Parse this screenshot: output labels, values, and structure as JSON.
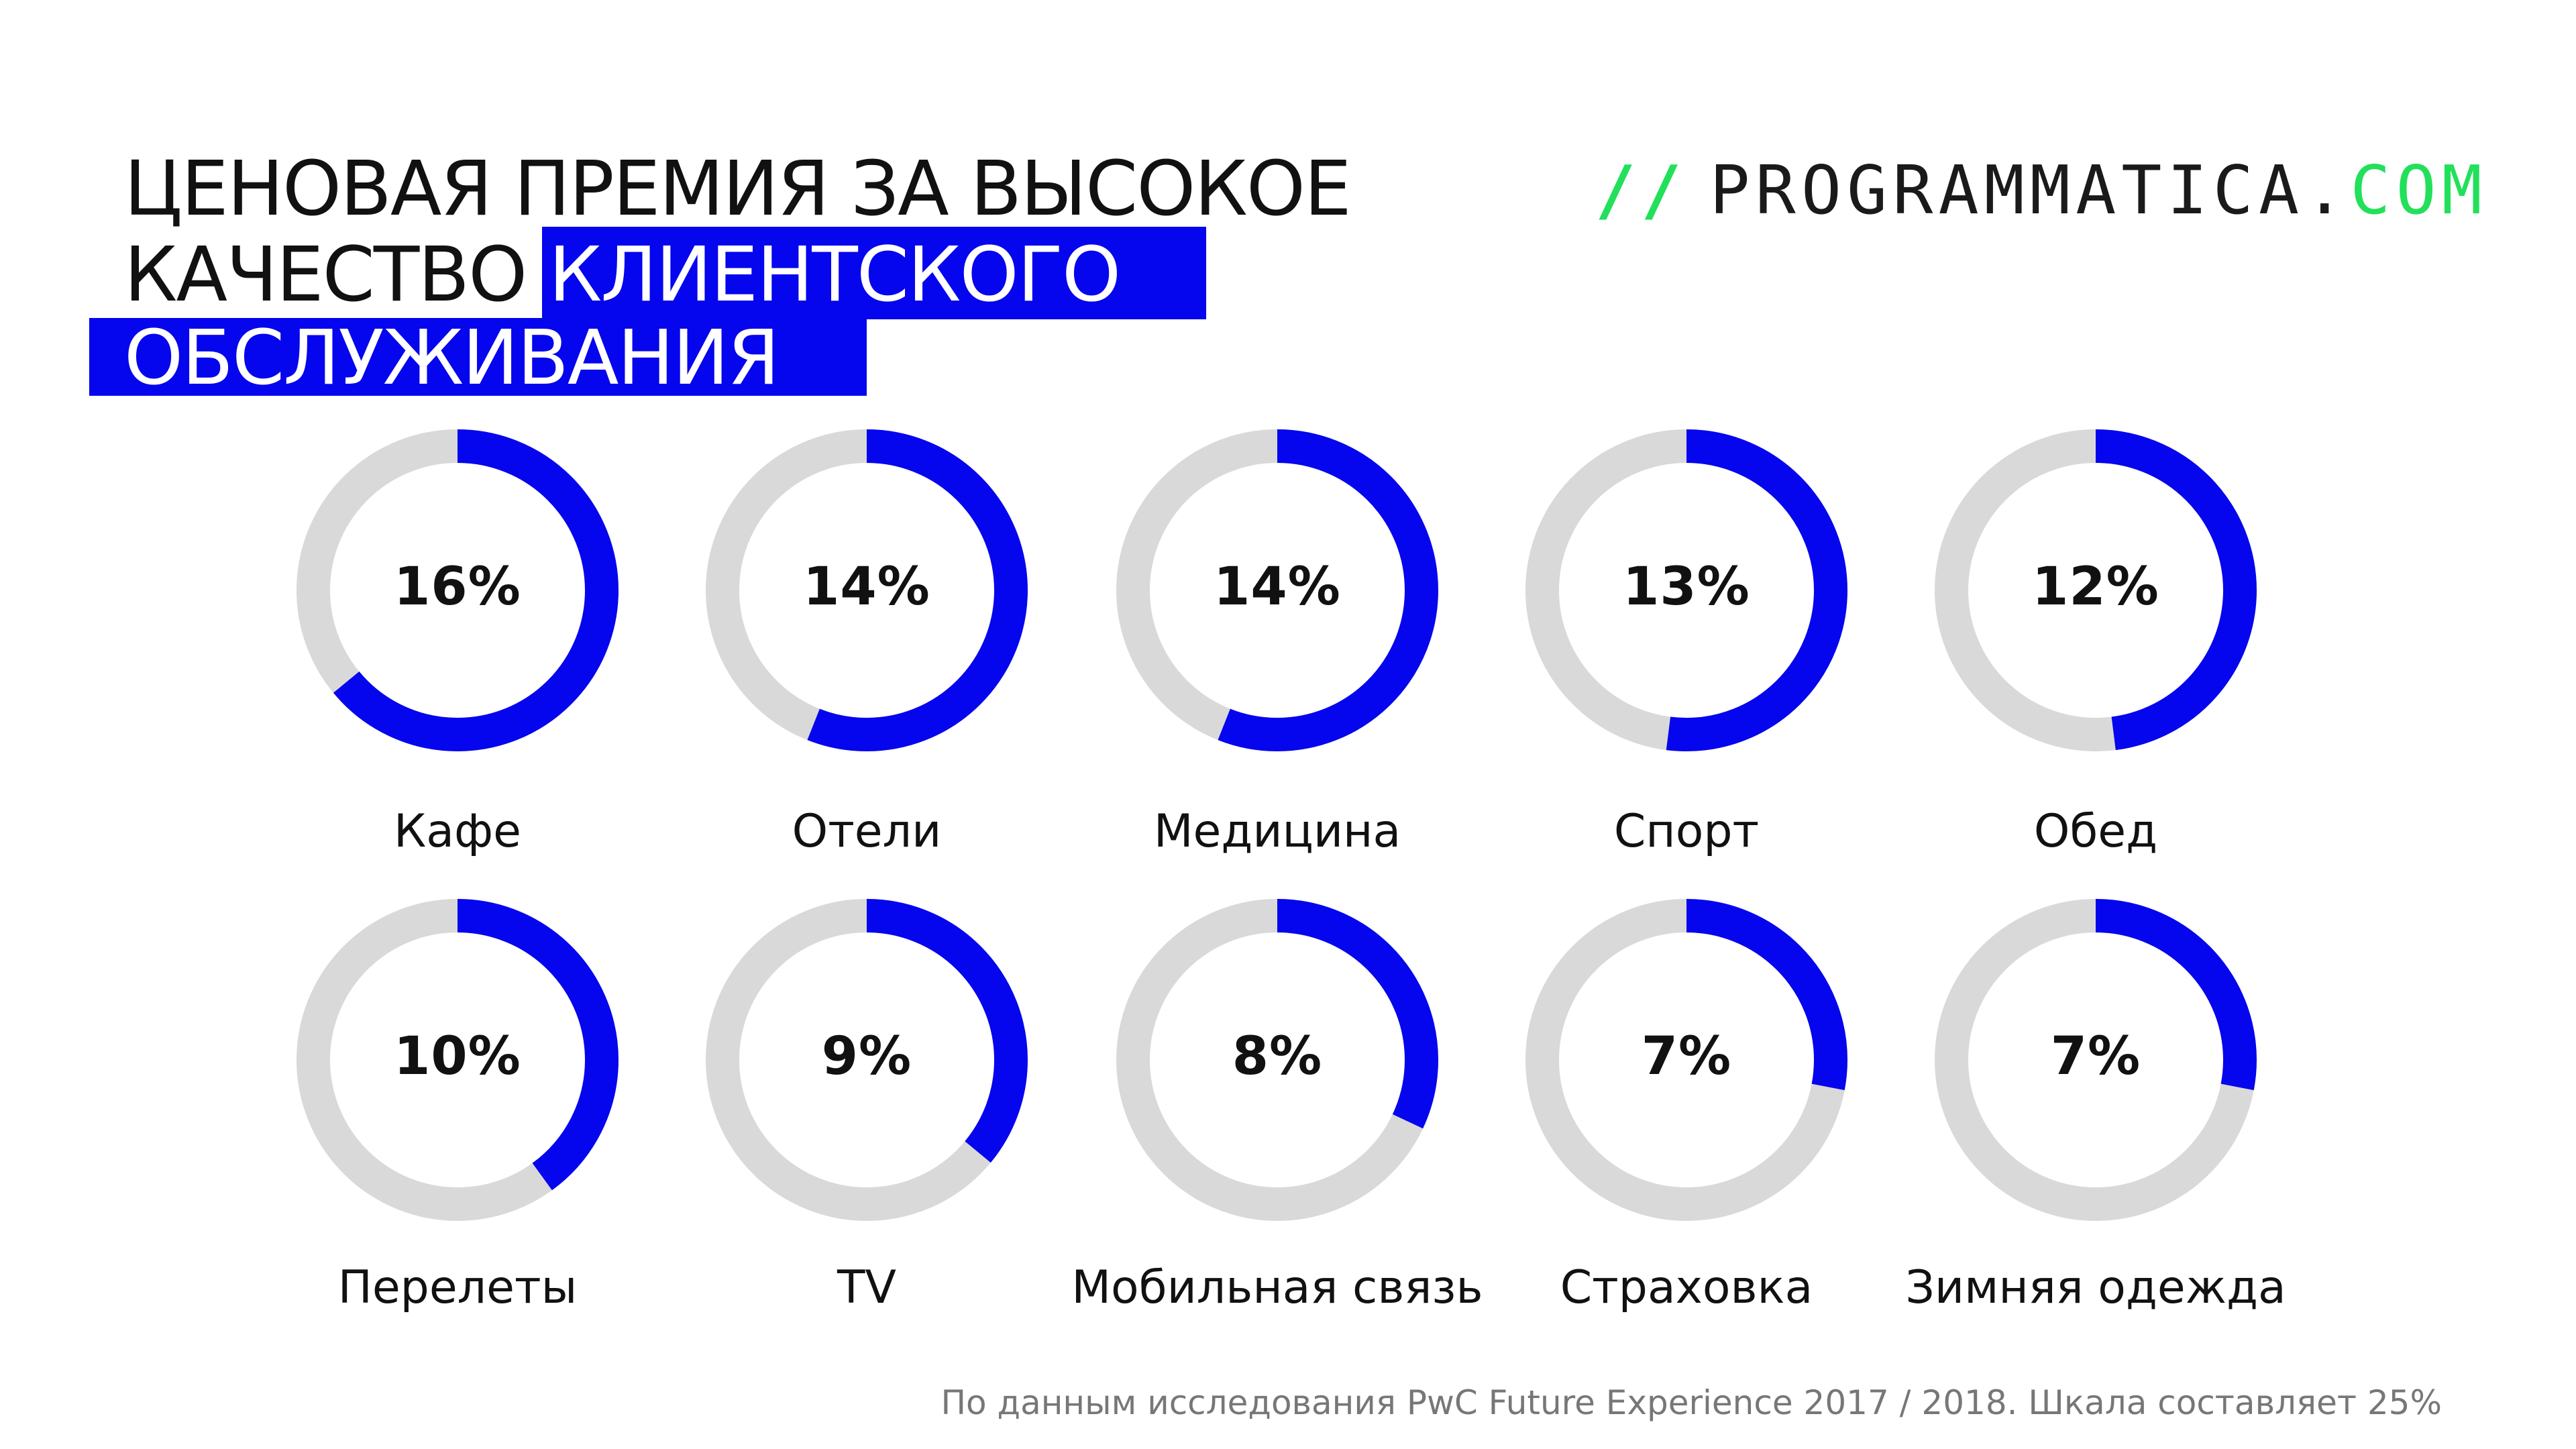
{
  "title": {
    "line1": "ЦЕНОВАЯ ПРЕМИЯ ЗА ВЫСОКОЕ",
    "line2_plain": "КАЧЕСТВО",
    "line2_highlight": "КЛИЕНТСКОГО",
    "line3_highlight": "ОБСЛУЖИВАНИЯ"
  },
  "logo": {
    "slashes": "//",
    "name": "PROGRAMMATICA.",
    "tld": "COM"
  },
  "footnote": "По данным исследования PwC Future Experience 2017 / 2018. Шкала составляет 25%",
  "colors": {
    "accent": "#0505ee",
    "track": "#d9d9d9",
    "logo_green": "#22e05a",
    "text": "#111111",
    "muted": "#777777"
  },
  "chart_data": {
    "type": "donut",
    "scale_max": 25,
    "unit": "%",
    "categories": [
      "Кафе",
      "Отели",
      "Медицина",
      "Спорт",
      "Обед",
      "Перелеты",
      "TV",
      "Мобильная связь",
      "Страховка",
      "Зимняя одежда"
    ],
    "values": [
      16,
      14,
      14,
      13,
      12,
      10,
      9,
      8,
      7,
      7
    ],
    "value_labels": [
      "16%",
      "14%",
      "14%",
      "13%",
      "12%",
      "10%",
      "9%",
      "8%",
      "7%",
      "7%"
    ]
  }
}
